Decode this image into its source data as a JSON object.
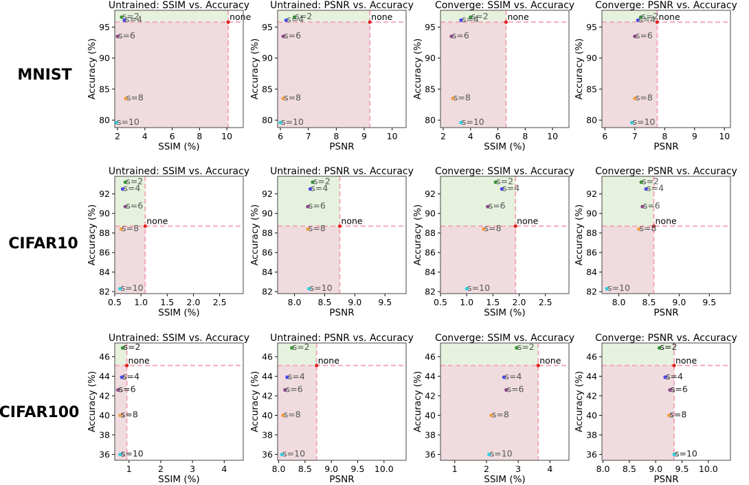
{
  "figure": {
    "rows": [
      "MNIST",
      "CIFAR10",
      "CIFAR100"
    ],
    "column_titles": [
      "Untrained: SSIM vs. Accuracy",
      "Untrained: PSNR vs. Accuracy",
      "Converge: SSIM vs. Accuracy",
      "Converge: PSNR vs. Accuracy"
    ],
    "column_xlabels": [
      "SSIM (%)",
      "PSNR",
      "SSIM (%)",
      "PSNR"
    ],
    "ylabel": "Accuracy (%)",
    "point_labels": [
      "s=2",
      "s=4",
      "s=6",
      "s=8",
      "s=10"
    ],
    "baseline_label": "none"
  },
  "colors": {
    "s2": "#3a923a",
    "s4": "#4a4ae8",
    "s6": "#8a4a8a",
    "s8": "#f0a040",
    "s10": "#30d0e0",
    "none": "#e02020",
    "green_region": "#e6f2de",
    "red_region": "#f0dcdf",
    "ref_line": "#f4a8b8"
  },
  "chart_data": [
    {
      "row": "MNIST",
      "title": "Untrained: SSIM vs. Accuracy",
      "xlabel": "SSIM (%)",
      "ylabel": "Accuracy (%)",
      "type": "scatter",
      "xlim": [
        1.8,
        11.2
      ],
      "ylim": [
        78.8,
        97.7
      ],
      "xticks": [
        2,
        4,
        6,
        8,
        10
      ],
      "yticks": [
        80,
        85,
        90,
        95
      ],
      "points": [
        {
          "label": "s=2",
          "x": 2.3,
          "y": 96.6,
          "text_color": "#555555"
        },
        {
          "label": "s=4",
          "x": 2.5,
          "y": 96.1,
          "text_color": "#555555"
        },
        {
          "label": "s=6",
          "x": 2.0,
          "y": 93.5,
          "text_color": "#555555"
        },
        {
          "label": "s=8",
          "x": 2.6,
          "y": 83.5,
          "text_color": "#555555"
        },
        {
          "label": "s=10",
          "x": 1.9,
          "y": 79.6,
          "text_color": "#555555"
        }
      ],
      "baseline": {
        "label": "none",
        "x": 10.1,
        "y": 95.8
      }
    },
    {
      "row": "MNIST",
      "title": "Untrained: PSNR vs. Accuracy",
      "xlabel": "PSNR",
      "ylabel": "Accuracy (%)",
      "type": "scatter",
      "xlim": [
        5.9,
        10.5
      ],
      "ylim": [
        78.8,
        97.7
      ],
      "xticks": [
        6,
        7,
        8,
        9,
        10
      ],
      "yticks": [
        80,
        85,
        90,
        95
      ],
      "points": [
        {
          "label": "s=2",
          "x": 6.5,
          "y": 96.6,
          "text_color": "#555555"
        },
        {
          "label": "s=4",
          "x": 6.2,
          "y": 96.1,
          "text_color": "#555555"
        },
        {
          "label": "s=6",
          "x": 6.1,
          "y": 93.5,
          "text_color": "#555555"
        },
        {
          "label": "s=8",
          "x": 6.1,
          "y": 83.5,
          "text_color": "#555555"
        },
        {
          "label": "s=10",
          "x": 6.0,
          "y": 79.6,
          "text_color": "#555555"
        }
      ],
      "baseline": {
        "label": "none",
        "x": 9.2,
        "y": 95.8
      }
    },
    {
      "row": "MNIST",
      "title": "Converge: SSIM vs. Accuracy",
      "xlabel": "SSIM (%)",
      "ylabel": "Accuracy (%)",
      "type": "scatter",
      "xlim": [
        1.8,
        11.2
      ],
      "ylim": [
        78.8,
        97.7
      ],
      "xticks": [
        2,
        4,
        6,
        8,
        10
      ],
      "yticks": [
        80,
        85,
        90,
        95
      ],
      "points": [
        {
          "label": "s=2",
          "x": 4.0,
          "y": 96.6,
          "text_color": "#555555"
        },
        {
          "label": "s=4",
          "x": 3.3,
          "y": 96.1,
          "text_color": "#555555"
        },
        {
          "label": "s=6",
          "x": 2.6,
          "y": 93.5,
          "text_color": "#555555"
        },
        {
          "label": "s=8",
          "x": 2.7,
          "y": 83.5,
          "text_color": "#555555"
        },
        {
          "label": "s=10",
          "x": 3.3,
          "y": 79.6,
          "text_color": "#555555"
        }
      ],
      "baseline": {
        "label": "none",
        "x": 6.6,
        "y": 95.8
      }
    },
    {
      "row": "MNIST",
      "title": "Converge: PSNR vs. Accuracy",
      "xlabel": "PSNR",
      "ylabel": "Accuracy (%)",
      "type": "scatter",
      "xlim": [
        5.9,
        10.2
      ],
      "ylim": [
        78.8,
        97.7
      ],
      "xticks": [
        6,
        7,
        8,
        9,
        10
      ],
      "yticks": [
        80,
        85,
        90,
        95
      ],
      "points": [
        {
          "label": "s=2",
          "x": 7.2,
          "y": 96.6,
          "text_color": "#555555"
        },
        {
          "label": "s=4",
          "x": 7.1,
          "y": 96.1,
          "text_color": "#555555"
        },
        {
          "label": "s=6",
          "x": 7.0,
          "y": 93.5,
          "text_color": "#555555"
        },
        {
          "label": "s=8",
          "x": 7.0,
          "y": 83.5,
          "text_color": "#555555"
        },
        {
          "label": "s=10",
          "x": 6.9,
          "y": 79.6,
          "text_color": "#555555"
        }
      ],
      "baseline": {
        "label": "none",
        "x": 7.75,
        "y": 95.8
      }
    },
    {
      "row": "CIFAR10",
      "title": "Untrained: SSIM vs. Accuracy",
      "xlabel": "SSIM (%)",
      "ylabel": "Accuracy (%)",
      "type": "scatter",
      "xlim": [
        0.5,
        2.95
      ],
      "ylim": [
        81.8,
        93.8
      ],
      "xticks": [
        0.5,
        1.0,
        1.5,
        2.0,
        2.5
      ],
      "yticks": [
        82,
        84,
        86,
        88,
        90,
        92
      ],
      "points": [
        {
          "label": "s=2",
          "x": 0.7,
          "y": 93.2,
          "text_color": "#555555"
        },
        {
          "label": "s=4",
          "x": 0.65,
          "y": 92.5,
          "text_color": "#555555"
        },
        {
          "label": "s=6",
          "x": 0.7,
          "y": 90.7,
          "text_color": "#555555"
        },
        {
          "label": "s=8",
          "x": 0.62,
          "y": 88.4,
          "text_color": "#555555"
        },
        {
          "label": "s=10",
          "x": 0.6,
          "y": 82.3,
          "text_color": "#555555"
        }
      ],
      "baseline": {
        "label": "none",
        "x": 1.08,
        "y": 88.7
      }
    },
    {
      "row": "CIFAR10",
      "title": "Untrained: PSNR vs. Accuracy",
      "xlabel": "PSNR",
      "ylabel": "Accuracy (%)",
      "type": "scatter",
      "xlim": [
        7.72,
        9.85
      ],
      "ylim": [
        81.8,
        93.8
      ],
      "xticks": [
        8.0,
        8.5,
        9.0,
        9.5
      ],
      "yticks": [
        82,
        84,
        86,
        88,
        90,
        92
      ],
      "points": [
        {
          "label": "s=2",
          "x": 8.3,
          "y": 93.2,
          "text_color": "#555555"
        },
        {
          "label": "s=4",
          "x": 8.26,
          "y": 92.5,
          "text_color": "#555555"
        },
        {
          "label": "s=6",
          "x": 8.22,
          "y": 90.7,
          "text_color": "#555555"
        },
        {
          "label": "s=8",
          "x": 8.22,
          "y": 88.4,
          "text_color": "#555555"
        },
        {
          "label": "s=10",
          "x": 8.24,
          "y": 82.3,
          "text_color": "#555555"
        }
      ],
      "baseline": {
        "label": "none",
        "x": 8.75,
        "y": 88.7
      }
    },
    {
      "row": "CIFAR10",
      "title": "Converge: SSIM vs. Accuracy",
      "xlabel": "SSIM (%)",
      "ylabel": "Accuracy (%)",
      "type": "scatter",
      "xlim": [
        0.5,
        2.95
      ],
      "ylim": [
        81.8,
        93.8
      ],
      "xticks": [
        0.5,
        1.0,
        1.5,
        2.0,
        2.5
      ],
      "yticks": [
        82,
        84,
        86,
        88,
        90,
        92
      ],
      "points": [
        {
          "label": "s=2",
          "x": 1.55,
          "y": 93.2,
          "text_color": "#555555"
        },
        {
          "label": "s=4",
          "x": 1.67,
          "y": 92.5,
          "text_color": "#555555"
        },
        {
          "label": "s=6",
          "x": 1.4,
          "y": 90.7,
          "text_color": "#555555"
        },
        {
          "label": "s=8",
          "x": 1.32,
          "y": 88.4,
          "text_color": "#555555"
        },
        {
          "label": "s=10",
          "x": 1.0,
          "y": 82.3,
          "text_color": "#555555"
        }
      ],
      "baseline": {
        "label": "none",
        "x": 1.93,
        "y": 88.7
      }
    },
    {
      "row": "CIFAR10",
      "title": "Converge: PSNR vs. Accuracy",
      "xlabel": "PSNR",
      "ylabel": "Accuracy (%)",
      "type": "scatter",
      "xlim": [
        7.72,
        9.85
      ],
      "ylim": [
        81.8,
        93.8
      ],
      "xticks": [
        8.0,
        8.5,
        9.0,
        9.5
      ],
      "yticks": [
        82,
        84,
        86,
        88,
        90,
        92
      ],
      "points": [
        {
          "label": "s=2",
          "x": 8.37,
          "y": 93.2,
          "text_color": "#555555"
        },
        {
          "label": "s=4",
          "x": 8.45,
          "y": 92.5,
          "text_color": "#555555"
        },
        {
          "label": "s=6",
          "x": 8.39,
          "y": 90.7,
          "text_color": "#555555"
        },
        {
          "label": "s=8",
          "x": 8.33,
          "y": 88.4,
          "text_color": "#555555"
        },
        {
          "label": "s=10",
          "x": 7.8,
          "y": 82.3,
          "text_color": "#555555"
        }
      ],
      "baseline": {
        "label": "none",
        "x": 8.58,
        "y": 88.7
      }
    },
    {
      "row": "CIFAR100",
      "title": "Untrained: SSIM vs. Accuracy",
      "xlabel": "SSIM (%)",
      "ylabel": "Accuracy (%)",
      "type": "scatter",
      "xlim": [
        0.55,
        4.6
      ],
      "ylim": [
        35.4,
        47.4
      ],
      "xticks": [
        1,
        2,
        3,
        4
      ],
      "yticks": [
        36,
        38,
        40,
        42,
        44,
        46
      ],
      "points": [
        {
          "label": "s=2",
          "x": 0.8,
          "y": 46.9,
          "text_color": "#222222"
        },
        {
          "label": "s=4",
          "x": 0.77,
          "y": 43.9,
          "text_color": "#222222"
        },
        {
          "label": "s=6",
          "x": 0.65,
          "y": 42.6,
          "text_color": "#222222"
        },
        {
          "label": "s=8",
          "x": 0.72,
          "y": 40.0,
          "text_color": "#222222"
        },
        {
          "label": "s=10",
          "x": 0.72,
          "y": 36.0,
          "text_color": "#222222"
        }
      ],
      "baseline": {
        "label": "none",
        "x": 0.93,
        "y": 45.1
      }
    },
    {
      "row": "CIFAR100",
      "title": "Untrained: PSNR vs. Accuracy",
      "xlabel": "PSNR",
      "ylabel": "Accuracy (%)",
      "type": "scatter",
      "xlim": [
        7.98,
        10.42
      ],
      "ylim": [
        35.4,
        47.4
      ],
      "xticks": [
        8.0,
        8.5,
        9.0,
        9.5,
        10.0
      ],
      "yticks": [
        36,
        38,
        40,
        42,
        44,
        46
      ],
      "points": [
        {
          "label": "s=2",
          "x": 8.25,
          "y": 46.9,
          "text_color": "#555555"
        },
        {
          "label": "s=4",
          "x": 8.16,
          "y": 43.9,
          "text_color": "#555555"
        },
        {
          "label": "s=6",
          "x": 8.12,
          "y": 42.6,
          "text_color": "#555555"
        },
        {
          "label": "s=8",
          "x": 8.08,
          "y": 40.0,
          "text_color": "#555555"
        },
        {
          "label": "s=10",
          "x": 8.06,
          "y": 36.0,
          "text_color": "#555555"
        }
      ],
      "baseline": {
        "label": "none",
        "x": 8.72,
        "y": 45.1
      }
    },
    {
      "row": "CIFAR100",
      "title": "Converge: SSIM vs. Accuracy",
      "xlabel": "SSIM (%)",
      "ylabel": "Accuracy (%)",
      "type": "scatter",
      "xlim": [
        0.55,
        4.6
      ],
      "ylim": [
        35.4,
        47.4
      ],
      "xticks": [
        1,
        2,
        3,
        4
      ],
      "yticks": [
        36,
        38,
        40,
        42,
        44,
        46
      ],
      "points": [
        {
          "label": "s=2",
          "x": 2.95,
          "y": 46.9,
          "text_color": "#555555"
        },
        {
          "label": "s=4",
          "x": 2.55,
          "y": 43.9,
          "text_color": "#555555"
        },
        {
          "label": "s=6",
          "x": 2.62,
          "y": 42.6,
          "text_color": "#555555"
        },
        {
          "label": "s=8",
          "x": 2.15,
          "y": 40.0,
          "text_color": "#555555"
        },
        {
          "label": "s=10",
          "x": 2.08,
          "y": 36.0,
          "text_color": "#555555"
        }
      ],
      "baseline": {
        "label": "none",
        "x": 3.63,
        "y": 45.1
      }
    },
    {
      "row": "CIFAR100",
      "title": "Converge: PSNR vs. Accuracy",
      "xlabel": "PSNR",
      "ylabel": "Accuracy (%)",
      "type": "scatter",
      "xlim": [
        7.98,
        10.42
      ],
      "ylim": [
        35.4,
        47.4
      ],
      "xticks": [
        8.0,
        8.5,
        9.0,
        9.5,
        10.0
      ],
      "yticks": [
        36,
        38,
        40,
        42,
        44,
        46
      ],
      "points": [
        {
          "label": "s=2",
          "x": 9.07,
          "y": 46.9,
          "text_color": "#222222"
        },
        {
          "label": "s=4",
          "x": 9.18,
          "y": 43.9,
          "text_color": "#222222"
        },
        {
          "label": "s=6",
          "x": 9.27,
          "y": 42.6,
          "text_color": "#222222"
        },
        {
          "label": "s=8",
          "x": 9.25,
          "y": 40.0,
          "text_color": "#222222"
        },
        {
          "label": "s=10",
          "x": 9.35,
          "y": 36.0,
          "text_color": "#222222"
        }
      ],
      "baseline": {
        "label": "none",
        "x": 9.35,
        "y": 45.1
      }
    }
  ]
}
